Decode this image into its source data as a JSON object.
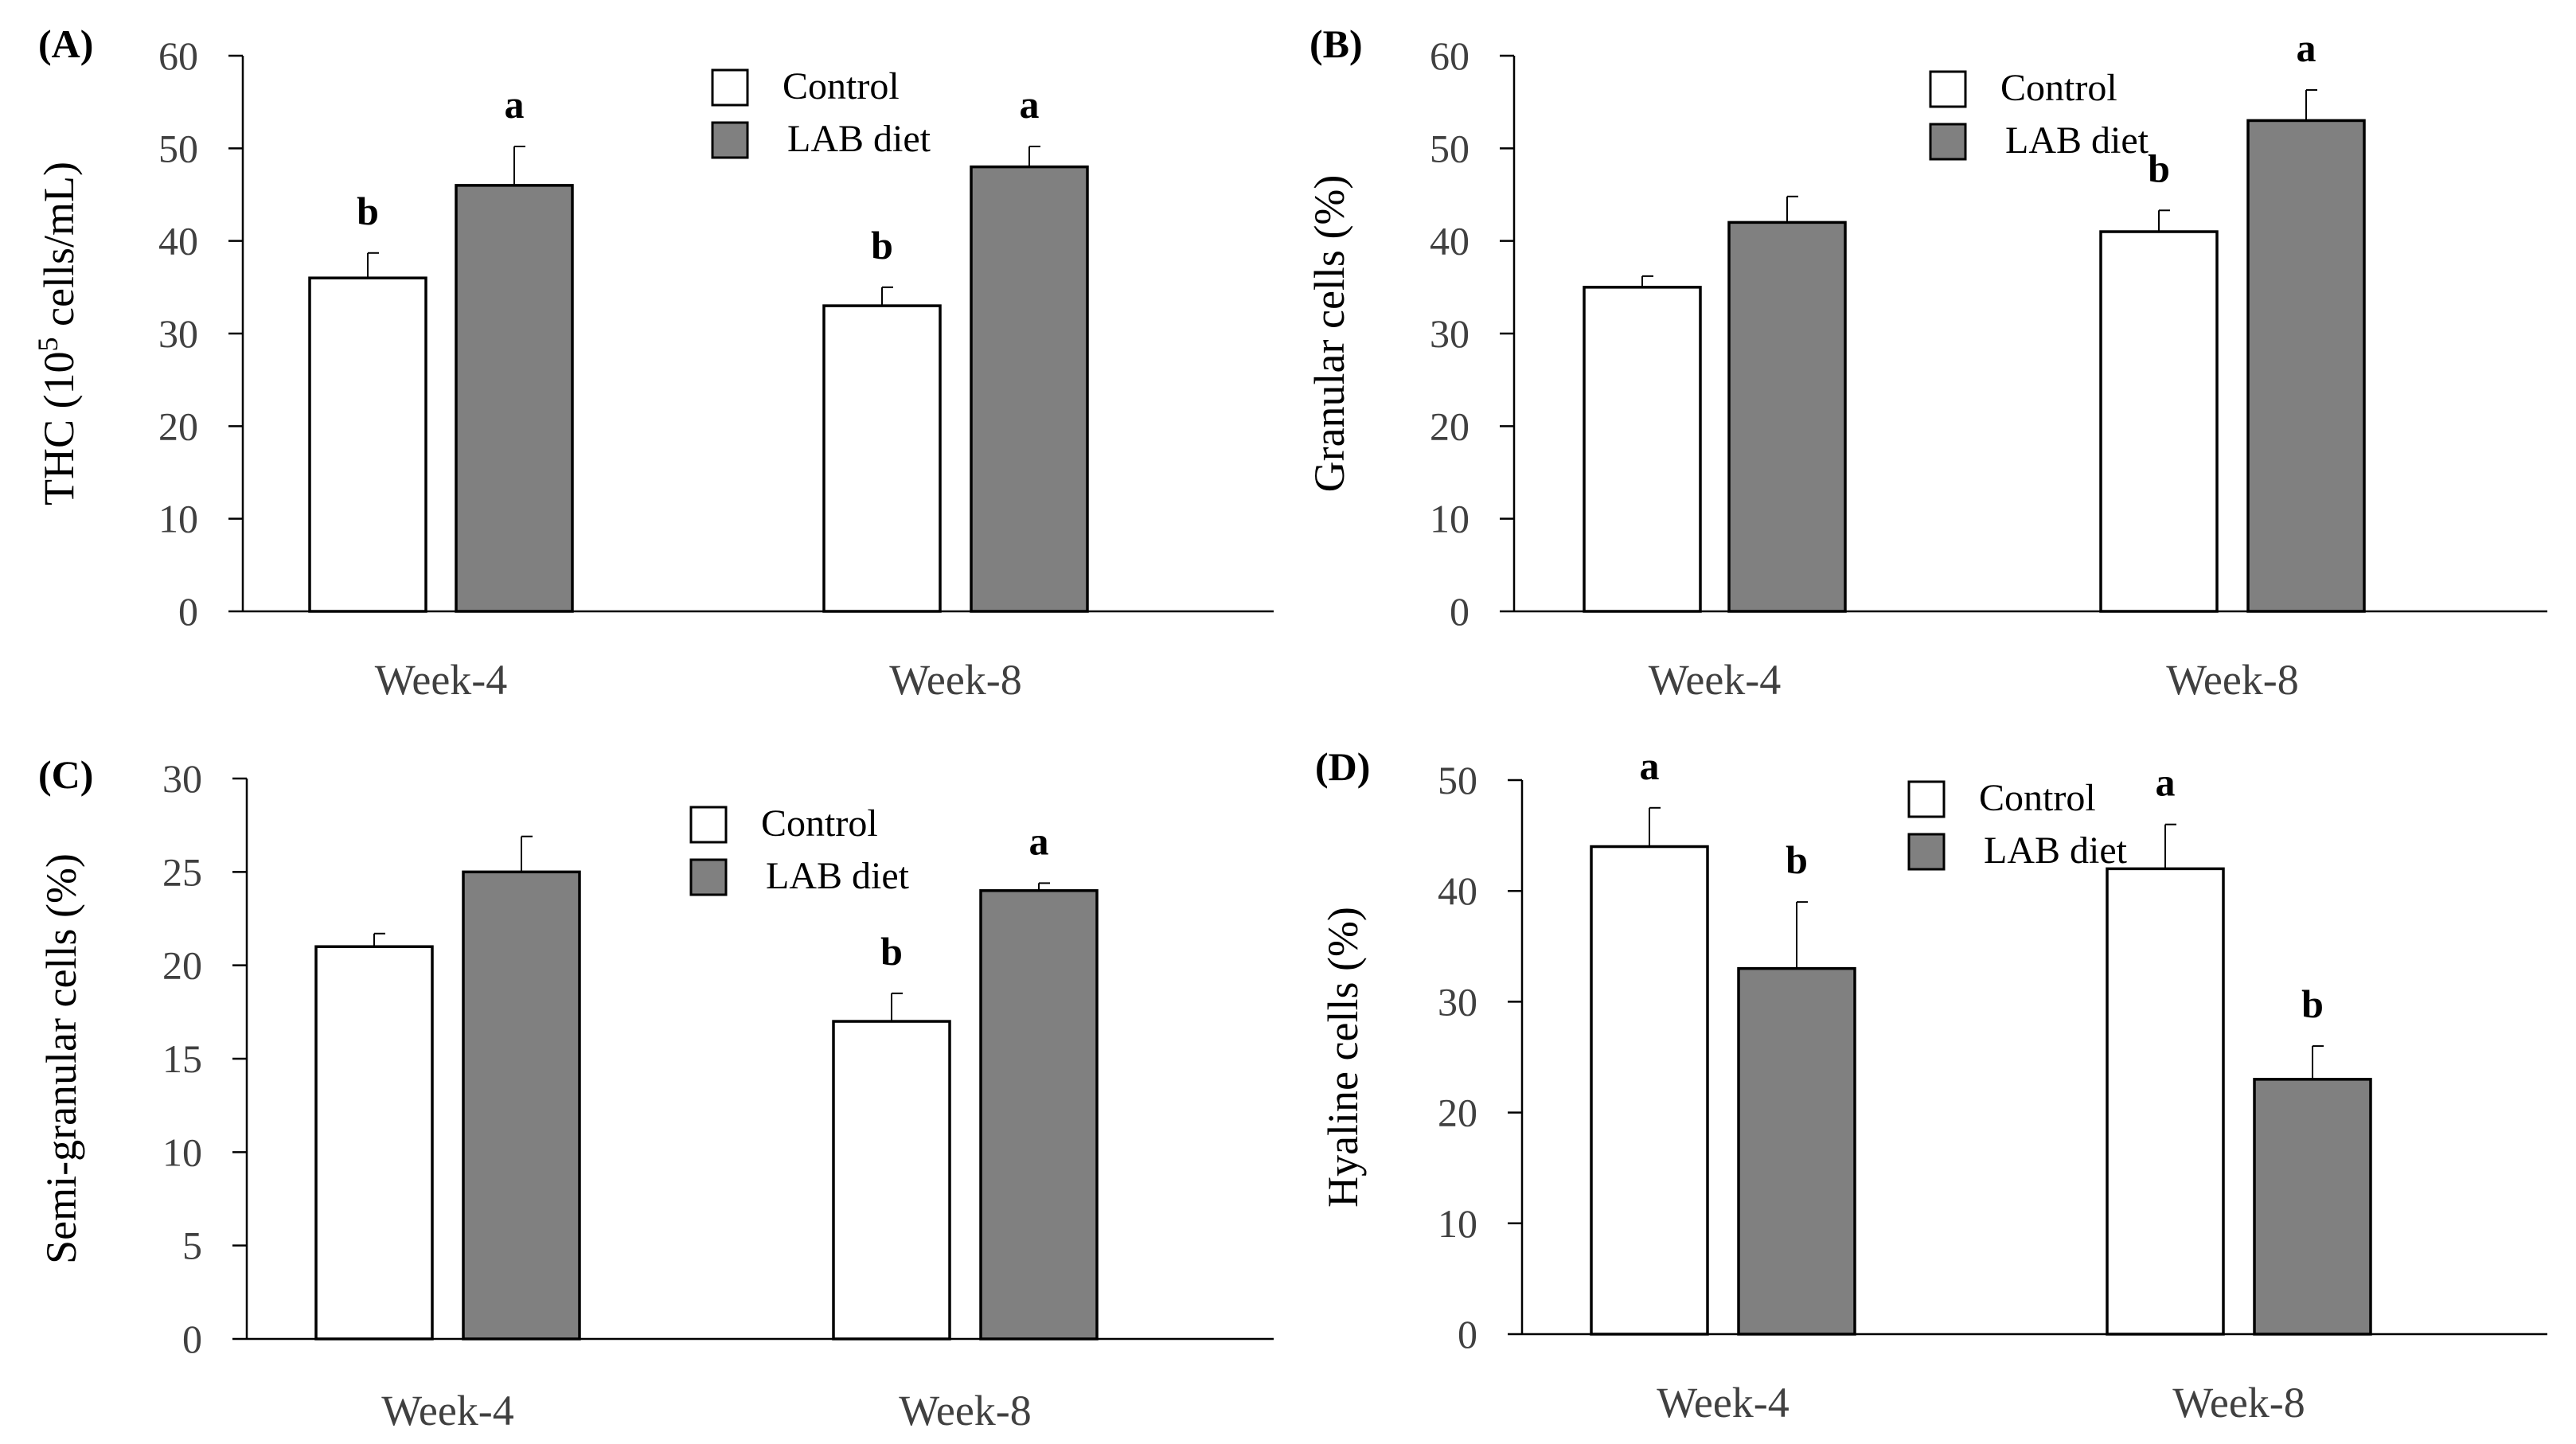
{
  "chart_data": [
    {
      "type": "bar",
      "panel": "(A)",
      "ylabel_main": "THC (10",
      "ylabel_sup": "5",
      "ylabel_tail": " cells/mL)",
      "categories": [
        "Week-4",
        "Week-8"
      ],
      "yticks": [
        "0",
        "10",
        "20",
        "30",
        "40",
        "50",
        "60"
      ],
      "ylim": [
        0,
        60
      ],
      "series": [
        {
          "name": "Control",
          "values": [
            36,
            33
          ],
          "errors": [
            2.7,
            2
          ],
          "letters": [
            "b",
            "b"
          ]
        },
        {
          "name": "LAB diet",
          "values": [
            46,
            48
          ],
          "errors": [
            4.2,
            2.2
          ],
          "letters": [
            "a",
            "a"
          ]
        }
      ],
      "legend": [
        "Control",
        "LAB diet"
      ]
    },
    {
      "type": "bar",
      "panel": "(B)",
      "ylabel_main": "Granular cells (%)",
      "ylabel_sup": "",
      "ylabel_tail": "",
      "categories": [
        "Week-4",
        "Week-8"
      ],
      "yticks": [
        "0",
        "10",
        "20",
        "30",
        "40",
        "50",
        "60"
      ],
      "ylim": [
        0,
        60
      ],
      "series": [
        {
          "name": "Control",
          "values": [
            35,
            41
          ],
          "errors": [
            1.2,
            2.3
          ],
          "letters": [
            "",
            "b"
          ]
        },
        {
          "name": "LAB diet",
          "values": [
            42,
            53
          ],
          "errors": [
            2.8,
            3.3
          ],
          "letters": [
            "",
            "a"
          ]
        }
      ],
      "legend": [
        "Control",
        "LAB diet"
      ]
    },
    {
      "type": "bar",
      "panel": "(C)",
      "ylabel_main": "Semi-granular cells (%)",
      "ylabel_sup": "",
      "ylabel_tail": "",
      "categories": [
        "Week-4",
        "Week-8"
      ],
      "yticks": [
        "0",
        "5",
        "10",
        "15",
        "20",
        "25",
        "30"
      ],
      "ylim": [
        0,
        30
      ],
      "series": [
        {
          "name": "Control",
          "values": [
            21,
            17
          ],
          "errors": [
            0.7,
            1.5
          ],
          "letters": [
            "",
            "b"
          ]
        },
        {
          "name": "LAB diet",
          "values": [
            25,
            24
          ],
          "errors": [
            1.9,
            0.4
          ],
          "letters": [
            "",
            "a"
          ]
        }
      ],
      "legend": [
        "Control",
        "LAB diet"
      ]
    },
    {
      "type": "bar",
      "panel": "(D)",
      "ylabel_main": "Hyaline cells (%)",
      "ylabel_sup": "",
      "ylabel_tail": "",
      "categories": [
        "Week-4",
        "Week-8"
      ],
      "yticks": [
        "0",
        "10",
        "20",
        "30",
        "40",
        "50"
      ],
      "ylim": [
        0,
        50
      ],
      "series": [
        {
          "name": "Control",
          "values": [
            44,
            42
          ],
          "errors": [
            3.5,
            4
          ],
          "letters": [
            "a",
            "a"
          ]
        },
        {
          "name": "LAB diet",
          "values": [
            33,
            23
          ],
          "errors": [
            6,
            3
          ],
          "letters": [
            "b",
            "b"
          ]
        }
      ],
      "legend": [
        "Control",
        "LAB diet"
      ]
    }
  ],
  "colors": {
    "control": "#ffffff",
    "lab": "#808080",
    "axis": "#000000"
  }
}
